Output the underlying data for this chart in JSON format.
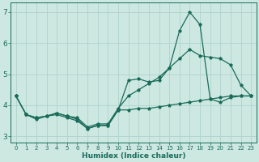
{
  "xlabel": "Humidex (Indice chaleur)",
  "background_color": "#cce8e0",
  "grid_color": "#aacfc8",
  "line_color": "#1a6b5a",
  "xlim": [
    -0.5,
    23.5
  ],
  "ylim": [
    2.8,
    7.3
  ],
  "yticks": [
    3,
    4,
    5,
    6,
    7
  ],
  "xticks": [
    0,
    1,
    2,
    3,
    4,
    5,
    6,
    7,
    8,
    9,
    10,
    11,
    12,
    13,
    14,
    15,
    16,
    17,
    18,
    19,
    20,
    21,
    22,
    23
  ],
  "x_all": [
    0,
    1,
    2,
    3,
    4,
    5,
    6,
    7,
    8,
    9,
    10,
    11,
    12,
    13,
    14,
    15,
    16,
    17,
    18,
    19,
    20,
    21,
    22,
    23
  ],
  "line_peak": [
    4.3,
    3.7,
    3.6,
    3.65,
    3.75,
    3.65,
    3.55,
    3.25,
    3.35,
    3.35,
    3.85,
    4.8,
    4.85,
    4.75,
    4.8,
    5.2,
    6.4,
    7.0,
    6.6,
    4.2,
    4.1,
    4.25,
    4.3,
    4.3
  ],
  "line_smooth": [
    4.3,
    3.7,
    3.55,
    3.65,
    3.75,
    3.65,
    3.6,
    3.3,
    3.4,
    3.4,
    3.9,
    4.3,
    4.5,
    4.7,
    4.9,
    5.2,
    5.5,
    5.8,
    5.6,
    5.55,
    5.5,
    5.3,
    4.65,
    4.3
  ],
  "line_flat": [
    4.3,
    3.7,
    3.6,
    3.65,
    3.7,
    3.6,
    3.5,
    3.25,
    3.35,
    3.35,
    3.85,
    3.85,
    3.9,
    3.9,
    3.95,
    4.0,
    4.05,
    4.1,
    4.15,
    4.2,
    4.25,
    4.3,
    4.3,
    4.3
  ]
}
